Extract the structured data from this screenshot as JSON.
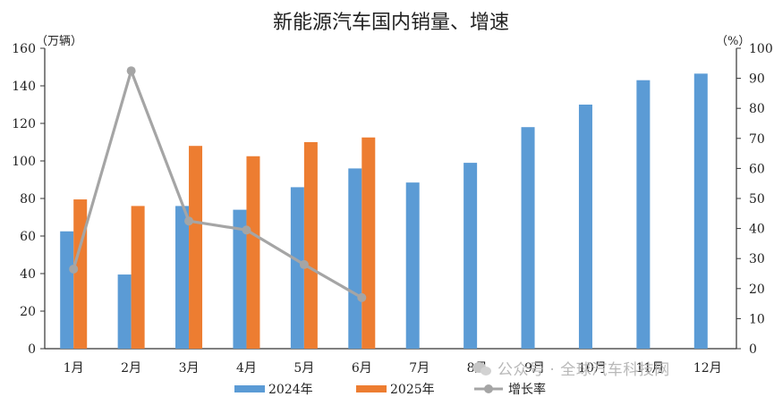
{
  "chart_data": {
    "type": "bar",
    "title": "新能源汽车国内销量、增速",
    "ylabel_left": "（万辆）",
    "ylabel_right": "（%）",
    "categories": [
      "1月",
      "2月",
      "3月",
      "4月",
      "5月",
      "6月",
      "7月",
      "8月",
      "9月",
      "10月",
      "11月",
      "12月"
    ],
    "y_left": {
      "min": 0,
      "max": 160,
      "ticks": [
        0,
        20,
        40,
        60,
        80,
        100,
        120,
        140,
        160
      ]
    },
    "y_right": {
      "min": 0,
      "max": 100,
      "ticks": [
        0,
        10,
        20,
        30,
        40,
        50,
        60,
        70,
        80,
        90,
        100
      ]
    },
    "grid": false,
    "legend_position": "bottom",
    "series": [
      {
        "name": "2024年",
        "type": "bar",
        "axis": "left",
        "color": "#5B9BD5",
        "values": [
          62.5,
          39.5,
          76,
          74,
          86,
          96,
          88.5,
          99,
          118,
          130,
          143,
          146.5
        ]
      },
      {
        "name": "2025年",
        "type": "bar",
        "axis": "left",
        "color": "#ED7D31",
        "values": [
          79.5,
          76,
          108,
          102.5,
          110,
          112.5,
          null,
          null,
          null,
          null,
          null,
          null
        ]
      },
      {
        "name": "增长率",
        "type": "line",
        "axis": "right",
        "color": "#A5A5A5",
        "values": [
          26.5,
          92.5,
          42.5,
          39.5,
          28,
          17,
          null,
          null,
          null,
          null,
          null,
          null
        ]
      }
    ]
  },
  "watermark": "公众号 · 全球汽车科技网"
}
